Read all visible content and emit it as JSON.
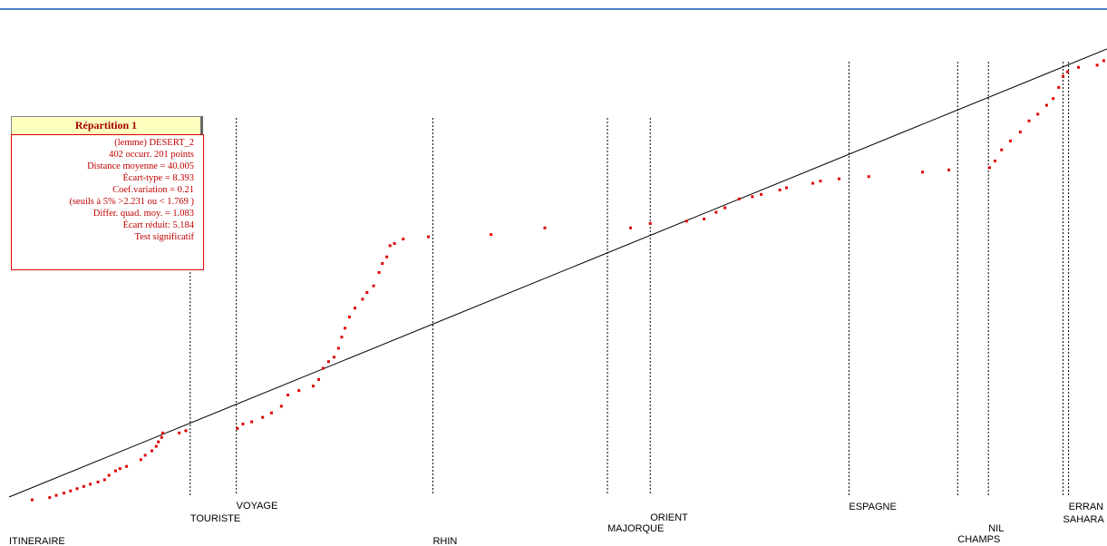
{
  "info_box": {
    "title": "Répartition 1",
    "lines": [
      "(lemme)   DESERT_2",
      "402 occurr.   201 points",
      "Distance moyenne =  40.005",
      "Écart-type =    8.393",
      "Coef.variation = 0.21",
      "(seuils à 5% >2.231 ou < 1.769 )",
      "Differ. quad. moy. = 1.083",
      "Écart réduit: 5.184",
      "Test significatif"
    ]
  },
  "chart_data": {
    "type": "scatter",
    "color": "#e00000",
    "x": [
      21,
      37,
      43,
      50,
      56,
      62,
      68,
      74,
      81,
      87,
      91,
      97,
      101,
      107,
      120,
      124,
      130,
      134,
      136,
      139,
      140,
      155,
      161,
      208,
      213,
      221,
      231,
      239,
      248,
      254,
      264,
      277,
      282,
      286,
      291,
      296,
      300,
      303,
      306,
      310,
      315,
      322,
      326,
      332,
      337,
      340,
      344,
      347,
      351,
      359,
      382,
      439,
      488,
      566,
      584,
      617,
      633,
      644,
      652,
      665,
      677,
      685,
      702,
      708,
      732,
      739,
      756,
      783,
      832,
      856,
      893,
      898,
      904,
      912,
      921,
      929,
      937,
      945,
      951,
      956,
      960,
      964,
      974,
      991,
      997
    ],
    "values": [
      2,
      3,
      4,
      5,
      6,
      7,
      8,
      9,
      10,
      11,
      13,
      15,
      16,
      17,
      20,
      22,
      24,
      26,
      28,
      30,
      32,
      32,
      33,
      34,
      36,
      37,
      39,
      41,
      44,
      49,
      51,
      53,
      56,
      61,
      64,
      66,
      70,
      75,
      79,
      84,
      88,
      92,
      95,
      98,
      104,
      108,
      111,
      116,
      117,
      119,
      120,
      121,
      124,
      124,
      126,
      127,
      128,
      131,
      133,
      137,
      138,
      139,
      141,
      142,
      144,
      145,
      146,
      147,
      149,
      150,
      151,
      154,
      159,
      163,
      167,
      172,
      175,
      179,
      182,
      187,
      192,
      194,
      196,
      197,
      199
    ],
    "xlim": [
      0,
      1000
    ],
    "ylim": [
      0,
      201
    ],
    "markers": [
      {
        "label": "ITINERAIRE",
        "x": 0
      },
      {
        "label": "TOURISTE",
        "x": 165
      },
      {
        "label": "VOYAGE",
        "x": 207
      },
      {
        "label": "RHIN",
        "x": 386
      },
      {
        "label": "MAJORQUE",
        "x": 545
      },
      {
        "label": "ORIENT",
        "x": 584
      },
      {
        "label": "ESPAGNE",
        "x": 765
      },
      {
        "label": "CHAMPS",
        "x": 864
      },
      {
        "label": "NIL",
        "x": 892
      },
      {
        "label": "SAHARA",
        "x": 960
      },
      {
        "label": "ERRAN",
        "x": 965
      }
    ]
  }
}
